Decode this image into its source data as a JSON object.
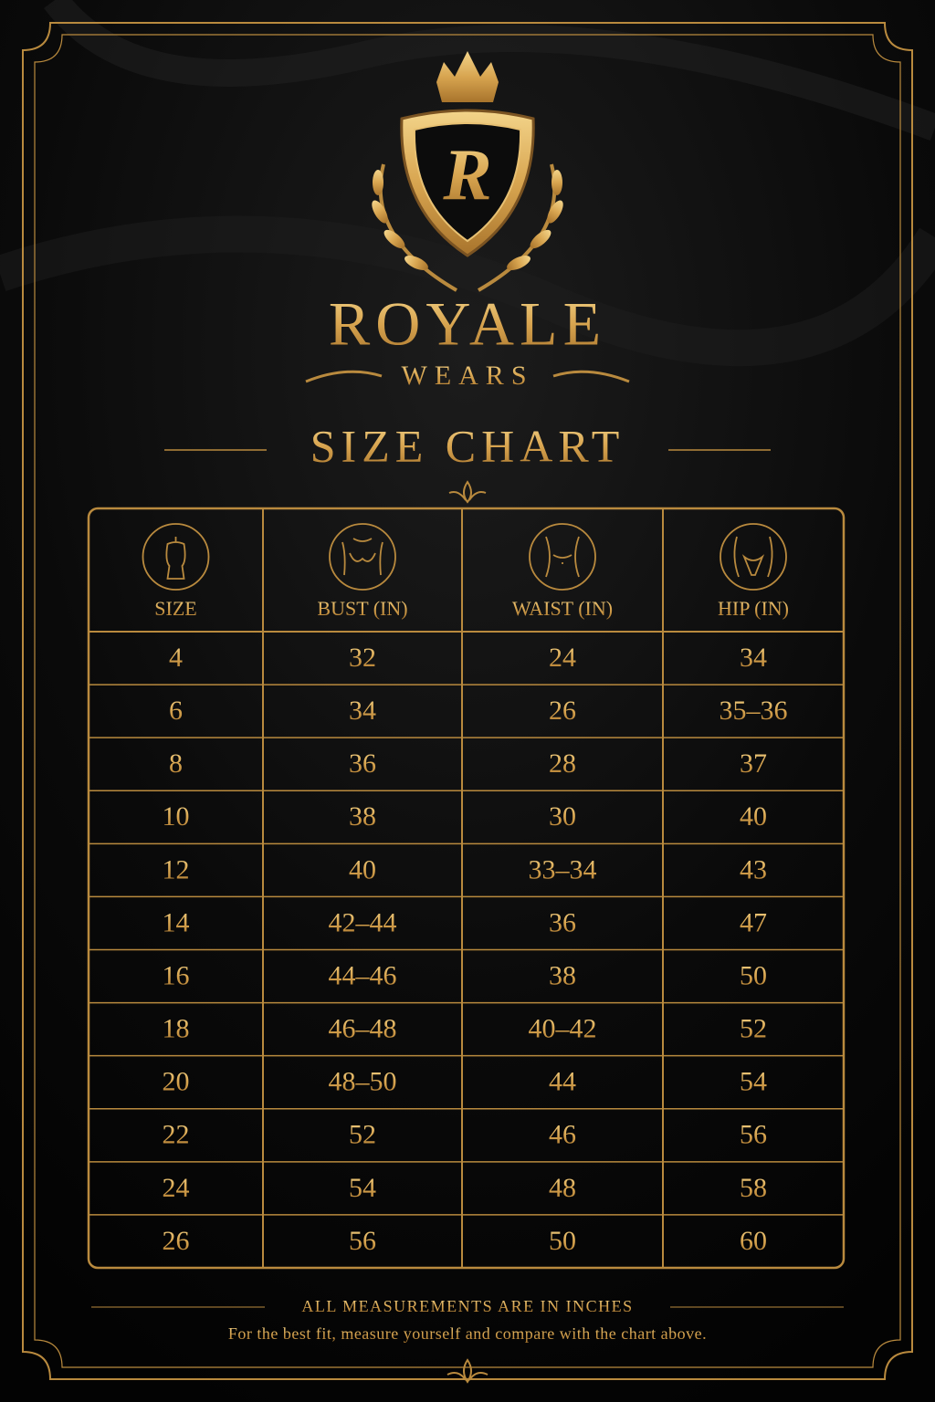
{
  "brand": {
    "monogram": "R",
    "name": "ROYALE",
    "tagline": "WEARS"
  },
  "title": "SIZE CHART",
  "table": {
    "headers": [
      "SIZE",
      "BUST (IN)",
      "WAIST (IN)",
      "HIP (IN)"
    ],
    "rows": [
      [
        "4",
        "32",
        "24",
        "34"
      ],
      [
        "6",
        "34",
        "26",
        "35–36"
      ],
      [
        "8",
        "36",
        "28",
        "37"
      ],
      [
        "10",
        "38",
        "30",
        "40"
      ],
      [
        "12",
        "40",
        "33–34",
        "43"
      ],
      [
        "14",
        "42–44",
        "36",
        "47"
      ],
      [
        "16",
        "44–46",
        "38",
        "50"
      ],
      [
        "18",
        "46–48",
        "40–42",
        "52"
      ],
      [
        "20",
        "48–50",
        "44",
        "54"
      ],
      [
        "22",
        "52",
        "46",
        "56"
      ],
      [
        "24",
        "54",
        "48",
        "58"
      ],
      [
        "26",
        "56",
        "50",
        "60"
      ]
    ]
  },
  "footer": {
    "note": "ALL MEASUREMENTS ARE IN INCHES",
    "text": "For the best fit, measure yourself and compare with the chart above."
  }
}
